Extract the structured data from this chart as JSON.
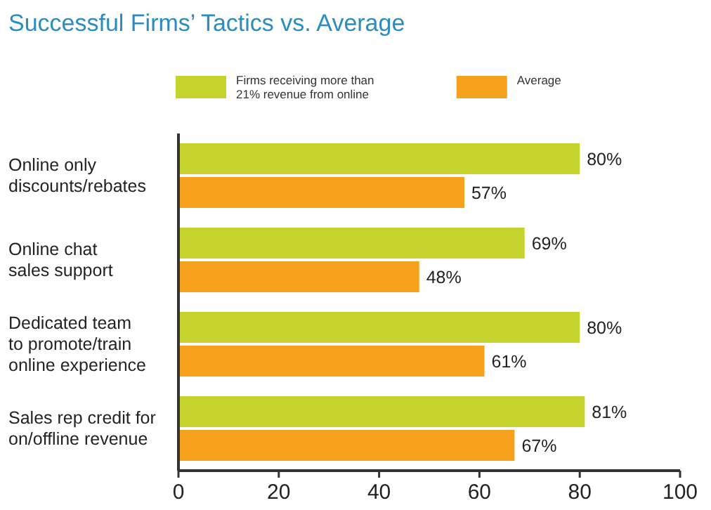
{
  "chart_data": {
    "type": "bar",
    "orientation": "horizontal",
    "title": "Successful Firms’ Tactics vs. Average",
    "categories": [
      "Online only discounts/rebates",
      "Online chat sales support",
      "Dedicated team to promote/train online experience",
      "Sales rep credit for on/offline revenue"
    ],
    "series": [
      {
        "name": "Firms receiving more than 21% revenue from online",
        "color": "#c5d42c",
        "values": [
          80,
          69,
          80,
          81
        ],
        "value_labels": [
          "80%",
          "69%",
          "80%",
          "81%"
        ]
      },
      {
        "name": "Average",
        "color": "#f5a11c",
        "values": [
          57,
          48,
          61,
          67
        ],
        "value_labels": [
          "57%",
          "48%",
          "61%",
          "67%"
        ]
      }
    ],
    "xlim": [
      0,
      100
    ],
    "xticks": [
      0,
      20,
      40,
      60,
      80,
      100
    ],
    "legend": "top",
    "grid": false
  }
}
